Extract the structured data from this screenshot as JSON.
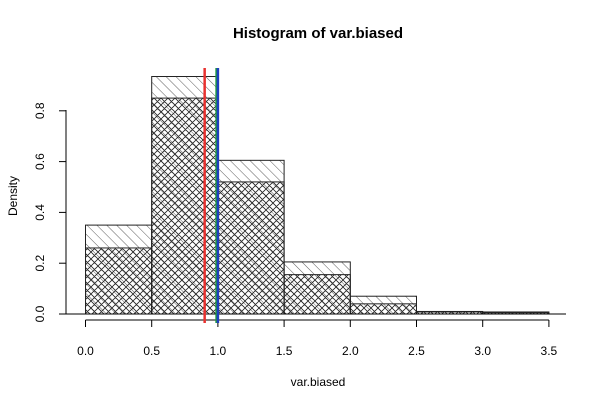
{
  "chart_data": {
    "type": "bar",
    "title": "Histogram of var.biased",
    "xlabel": "var.biased",
    "ylabel": "Density",
    "xlim": [
      0.0,
      3.6
    ],
    "ylim": [
      0.0,
      0.95
    ],
    "x_ticks": [
      "0.0",
      "0.5",
      "1.0",
      "1.5",
      "2.0",
      "2.5",
      "3.0",
      "3.5"
    ],
    "y_ticks": [
      "0.0",
      "0.2",
      "0.4",
      "0.6",
      "0.8"
    ],
    "bin_edges": [
      0.0,
      0.5,
      1.0,
      1.5,
      2.0,
      2.5,
      3.0,
      3.5
    ],
    "series": [
      {
        "fill": "hatch-single",
        "values": [
          0.35,
          0.935,
          0.605,
          0.205,
          0.07,
          0.01,
          0.008
        ]
      },
      {
        "fill": "hatch-cross",
        "values": [
          0.26,
          0.85,
          0.52,
          0.155,
          0.04,
          0.008,
          0.005
        ]
      }
    ],
    "vlines": [
      {
        "x": 0.9,
        "color": "#e8312f"
      },
      {
        "x": 0.99,
        "color": "#1f9e3a"
      },
      {
        "x": 1.0,
        "color": "#1f3fbf"
      }
    ],
    "grid": false,
    "legend": "none"
  }
}
